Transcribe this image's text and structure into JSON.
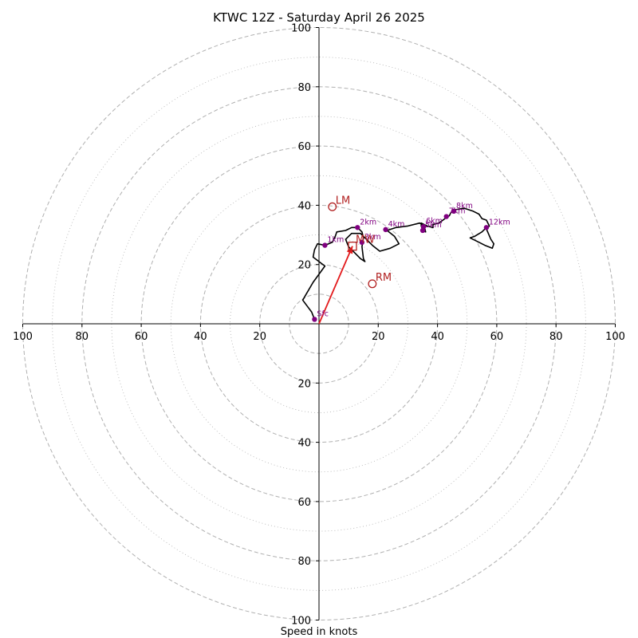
{
  "chart_data": {
    "type": "hodograph",
    "title": "KTWC 12Z - Saturday April 26 2025",
    "xlabel": "Speed in knots",
    "axis_range": [
      -100,
      100
    ],
    "ring_speeds_dashed": [
      10,
      20,
      40,
      60,
      80,
      100
    ],
    "ring_speeds_dotted": [
      30,
      50,
      70,
      90
    ],
    "x_tick_labels": [
      {
        "value": -100,
        "label": "100"
      },
      {
        "value": -80,
        "label": "80"
      },
      {
        "value": -60,
        "label": "60"
      },
      {
        "value": -40,
        "label": "40"
      },
      {
        "value": -20,
        "label": "20"
      },
      {
        "value": 20,
        "label": "20"
      },
      {
        "value": 40,
        "label": "40"
      },
      {
        "value": 60,
        "label": "60"
      },
      {
        "value": 80,
        "label": "80"
      },
      {
        "value": 100,
        "label": "100"
      }
    ],
    "y_tick_labels": [
      {
        "value": 100,
        "label": "100"
      },
      {
        "value": 80,
        "label": "80"
      },
      {
        "value": 60,
        "label": "60"
      },
      {
        "value": 40,
        "label": "40"
      },
      {
        "value": 20,
        "label": "20"
      },
      {
        "value": -20,
        "label": "20"
      },
      {
        "value": -40,
        "label": "40"
      },
      {
        "value": -60,
        "label": "60"
      },
      {
        "value": -80,
        "label": "80"
      },
      {
        "value": -100,
        "label": "100"
      }
    ],
    "hodograph_trace": [
      [
        -1.5,
        1.5
      ],
      [
        -2.5,
        4
      ],
      [
        -4,
        6
      ],
      [
        -5.5,
        8
      ],
      [
        -2,
        14
      ],
      [
        2,
        19.5
      ],
      [
        -2,
        22.5
      ],
      [
        -1.5,
        25
      ],
      [
        -0.5,
        27
      ],
      [
        2,
        26.5
      ],
      [
        4.5,
        27.5
      ],
      [
        5.5,
        29.5
      ],
      [
        6,
        31
      ],
      [
        9,
        31.5
      ],
      [
        11,
        32.5
      ],
      [
        13,
        32.5
      ],
      [
        14.5,
        31
      ],
      [
        15,
        29
      ],
      [
        14.5,
        26
      ],
      [
        15,
        22
      ],
      [
        15.5,
        21
      ],
      [
        14,
        22
      ],
      [
        12,
        24
      ],
      [
        10,
        26
      ],
      [
        9,
        28.5
      ],
      [
        11,
        30.5
      ],
      [
        14,
        30.5
      ],
      [
        16,
        28.5
      ],
      [
        18,
        26.5
      ],
      [
        20.5,
        24.5
      ],
      [
        24,
        25.5
      ],
      [
        27,
        27
      ],
      [
        25.5,
        29.5
      ],
      [
        23,
        31.5
      ],
      [
        26,
        32.5
      ],
      [
        30,
        33
      ],
      [
        34,
        34
      ],
      [
        35.5,
        33
      ],
      [
        36,
        31
      ],
      [
        35,
        31.5
      ],
      [
        34.5,
        33
      ],
      [
        34.5,
        34
      ],
      [
        36.5,
        33
      ],
      [
        38.5,
        32.5
      ],
      [
        38.5,
        33.5
      ],
      [
        40.5,
        34
      ],
      [
        42.5,
        35.5
      ],
      [
        44,
        36.5
      ],
      [
        44.5,
        37.5
      ],
      [
        46,
        38.5
      ],
      [
        49,
        39
      ],
      [
        52,
        38
      ],
      [
        54,
        37
      ],
      [
        55,
        35.5
      ],
      [
        56.5,
        35
      ],
      [
        57.5,
        33
      ],
      [
        56.5,
        32
      ],
      [
        58,
        28.5
      ],
      [
        59,
        27
      ],
      [
        58.5,
        25.5
      ],
      [
        56,
        26.5
      ],
      [
        54,
        27.5
      ],
      [
        51,
        29
      ],
      [
        52.5,
        29.5
      ],
      [
        55,
        31
      ],
      [
        56.5,
        32.5
      ]
    ],
    "height_points": [
      {
        "label": "Sfc",
        "u": -1.5,
        "v": 1.5
      },
      {
        "label": "1km",
        "u": 2,
        "v": 26.5
      },
      {
        "label": "2km",
        "u": 13,
        "v": 32.5
      },
      {
        "label": "3km",
        "u": 14.5,
        "v": 27.5
      },
      {
        "label": "4km",
        "u": 22.5,
        "v": 31.8
      },
      {
        "label": "5km",
        "u": 35,
        "v": 31.5
      },
      {
        "label": "6km",
        "u": 35.3,
        "v": 32.8
      },
      {
        "label": "7km",
        "u": 43,
        "v": 36.2
      },
      {
        "label": "8km",
        "u": 45.5,
        "v": 38
      },
      {
        "label": "12km",
        "u": 56.5,
        "v": 32.5
      }
    ],
    "motion_points": [
      {
        "label": "LM",
        "u": 4.5,
        "v": 39.5,
        "marker": "circle"
      },
      {
        "label": "RM",
        "u": 18,
        "v": 13.5,
        "marker": "circle"
      },
      {
        "label": "MW",
        "u": 11.3,
        "v": 26.2,
        "marker": "square"
      }
    ],
    "motion_vector": {
      "from": [
        0,
        0
      ],
      "to": [
        11.3,
        26.2
      ]
    },
    "colors": {
      "trace": "#000000",
      "height_points": "#800080",
      "motion": "#b22222",
      "vector": "#e31a1c",
      "rings": "#b0b0b0",
      "axes": "#000000"
    }
  }
}
